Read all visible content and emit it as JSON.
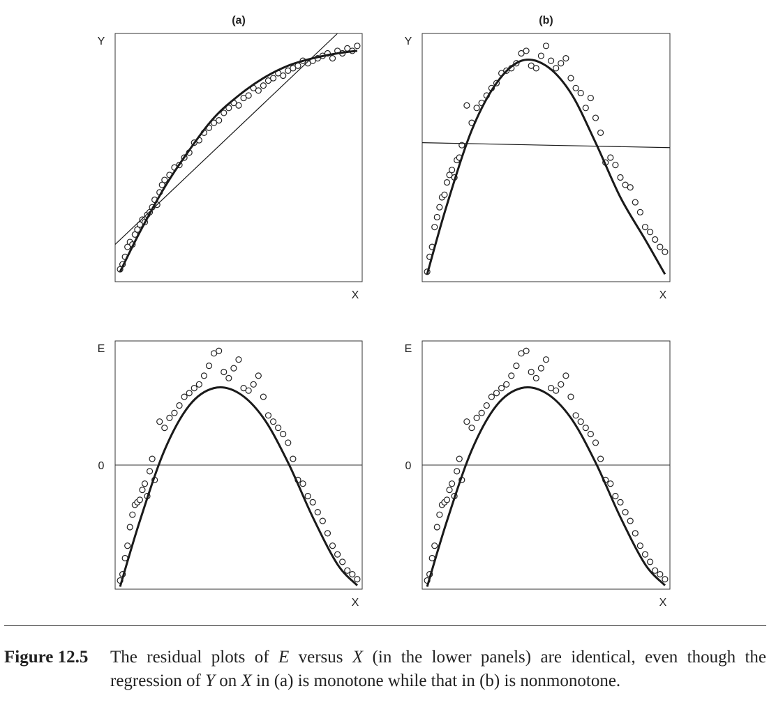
{
  "chart_data": [
    {
      "type": "scatter",
      "panel": "top-left",
      "title": "(a)",
      "ylabel": "Y",
      "xlabel": "X",
      "xlim": [
        0,
        1
      ],
      "ylim": [
        0,
        1
      ],
      "series": [
        {
          "kind": "points",
          "x": [
            0.02,
            0.03,
            0.04,
            0.05,
            0.06,
            0.07,
            0.08,
            0.09,
            0.1,
            0.11,
            0.12,
            0.13,
            0.14,
            0.15,
            0.16,
            0.17,
            0.18,
            0.19,
            0.2,
            0.22,
            0.24,
            0.26,
            0.28,
            0.3,
            0.32,
            0.34,
            0.36,
            0.38,
            0.4,
            0.42,
            0.44,
            0.46,
            0.48,
            0.5,
            0.52,
            0.54,
            0.56,
            0.58,
            0.6,
            0.62,
            0.64,
            0.66,
            0.68,
            0.7,
            0.72,
            0.74,
            0.76,
            0.78,
            0.8,
            0.82,
            0.84,
            0.86,
            0.88,
            0.9,
            0.92,
            0.94,
            0.96,
            0.98
          ],
          "y": [
            0.05,
            0.07,
            0.1,
            0.14,
            0.16,
            0.15,
            0.19,
            0.21,
            0.23,
            0.25,
            0.24,
            0.27,
            0.28,
            0.3,
            0.33,
            0.31,
            0.36,
            0.39,
            0.41,
            0.43,
            0.46,
            0.47,
            0.5,
            0.52,
            0.56,
            0.57,
            0.6,
            0.62,
            0.64,
            0.65,
            0.68,
            0.7,
            0.72,
            0.71,
            0.74,
            0.75,
            0.78,
            0.77,
            0.79,
            0.81,
            0.82,
            0.84,
            0.83,
            0.85,
            0.86,
            0.87,
            0.89,
            0.88,
            0.89,
            0.9,
            0.91,
            0.92,
            0.9,
            0.93,
            0.92,
            0.94,
            0.93,
            0.95
          ]
        },
        {
          "kind": "smooth-fit",
          "x": [
            0.02,
            0.1,
            0.2,
            0.3,
            0.4,
            0.5,
            0.6,
            0.7,
            0.8,
            0.9,
            0.98
          ],
          "y": [
            0.04,
            0.2,
            0.38,
            0.53,
            0.66,
            0.75,
            0.82,
            0.87,
            0.9,
            0.92,
            0.93
          ]
        },
        {
          "kind": "linear-fit",
          "x": [
            0.0,
            0.9
          ],
          "y": [
            0.15,
            1.0
          ]
        }
      ]
    },
    {
      "type": "scatter",
      "panel": "top-right",
      "title": "(b)",
      "ylabel": "Y",
      "xlabel": "X",
      "xlim": [
        0,
        1
      ],
      "ylim": [
        0,
        1
      ],
      "series": [
        {
          "kind": "points",
          "x": [
            0.02,
            0.03,
            0.04,
            0.05,
            0.06,
            0.07,
            0.08,
            0.09,
            0.1,
            0.11,
            0.12,
            0.13,
            0.14,
            0.15,
            0.16,
            0.18,
            0.2,
            0.22,
            0.24,
            0.26,
            0.28,
            0.3,
            0.32,
            0.34,
            0.36,
            0.38,
            0.4,
            0.42,
            0.44,
            0.46,
            0.48,
            0.5,
            0.52,
            0.54,
            0.56,
            0.58,
            0.6,
            0.62,
            0.64,
            0.66,
            0.68,
            0.7,
            0.72,
            0.74,
            0.76,
            0.78,
            0.8,
            0.82,
            0.84,
            0.86,
            0.88,
            0.9,
            0.92,
            0.94,
            0.96,
            0.98
          ],
          "y": [
            0.04,
            0.1,
            0.14,
            0.22,
            0.26,
            0.3,
            0.34,
            0.35,
            0.4,
            0.43,
            0.45,
            0.42,
            0.49,
            0.5,
            0.55,
            0.71,
            0.64,
            0.7,
            0.72,
            0.75,
            0.78,
            0.8,
            0.84,
            0.85,
            0.86,
            0.88,
            0.92,
            0.93,
            0.87,
            0.86,
            0.91,
            0.95,
            0.89,
            0.86,
            0.88,
            0.9,
            0.82,
            0.78,
            0.76,
            0.7,
            0.74,
            0.66,
            0.6,
            0.48,
            0.5,
            0.47,
            0.42,
            0.39,
            0.38,
            0.32,
            0.28,
            0.22,
            0.2,
            0.17,
            0.14,
            0.12
          ]
        },
        {
          "kind": "smooth-fit",
          "x": [
            0.02,
            0.1,
            0.2,
            0.3,
            0.4,
            0.5,
            0.6,
            0.7,
            0.8,
            0.9,
            0.98
          ],
          "y": [
            0.03,
            0.31,
            0.61,
            0.8,
            0.89,
            0.87,
            0.76,
            0.56,
            0.34,
            0.17,
            0.03
          ]
        },
        {
          "kind": "linear-fit",
          "x": [
            0.0,
            1.0
          ],
          "y": [
            0.56,
            0.54
          ]
        }
      ]
    },
    {
      "type": "scatter",
      "panel": "bottom-left",
      "ylabel": "E",
      "xlabel": "X",
      "yticks": [
        "0"
      ],
      "xlim": [
        0,
        1
      ],
      "ylim": [
        -1,
        1
      ],
      "series": [
        {
          "kind": "points",
          "x": [
            0.02,
            0.03,
            0.04,
            0.05,
            0.06,
            0.07,
            0.08,
            0.09,
            0.1,
            0.11,
            0.12,
            0.13,
            0.14,
            0.15,
            0.16,
            0.18,
            0.2,
            0.22,
            0.24,
            0.26,
            0.28,
            0.3,
            0.32,
            0.34,
            0.36,
            0.38,
            0.4,
            0.42,
            0.44,
            0.46,
            0.48,
            0.5,
            0.52,
            0.54,
            0.56,
            0.58,
            0.6,
            0.62,
            0.64,
            0.66,
            0.68,
            0.7,
            0.72,
            0.74,
            0.76,
            0.78,
            0.8,
            0.82,
            0.84,
            0.86,
            0.88,
            0.9,
            0.92,
            0.94,
            0.96,
            0.98
          ],
          "y": [
            -0.93,
            -0.88,
            -0.75,
            -0.65,
            -0.5,
            -0.4,
            -0.32,
            -0.3,
            -0.28,
            -0.2,
            -0.15,
            -0.25,
            -0.05,
            0.05,
            -0.12,
            0.35,
            0.3,
            0.38,
            0.42,
            0.48,
            0.55,
            0.58,
            0.62,
            0.65,
            0.72,
            0.8,
            0.9,
            0.92,
            0.75,
            0.7,
            0.78,
            0.85,
            0.62,
            0.6,
            0.65,
            0.72,
            0.55,
            0.4,
            0.35,
            0.3,
            0.25,
            0.18,
            0.05,
            -0.12,
            -0.15,
            -0.25,
            -0.3,
            -0.38,
            -0.45,
            -0.55,
            -0.65,
            -0.72,
            -0.78,
            -0.85,
            -0.88,
            -0.92
          ]
        },
        {
          "kind": "smooth-fit",
          "x": [
            0.02,
            0.1,
            0.2,
            0.3,
            0.4,
            0.5,
            0.6,
            0.7,
            0.8,
            0.9,
            0.98
          ],
          "y": [
            -0.98,
            -0.45,
            0.12,
            0.48,
            0.62,
            0.58,
            0.38,
            0.02,
            -0.42,
            -0.8,
            -0.97
          ]
        }
      ]
    },
    {
      "type": "scatter",
      "panel": "bottom-right",
      "ylabel": "E",
      "xlabel": "X",
      "yticks": [
        "0"
      ],
      "xlim": [
        0,
        1
      ],
      "ylim": [
        -1,
        1
      ],
      "series": [
        {
          "kind": "points",
          "x": [
            0.02,
            0.03,
            0.04,
            0.05,
            0.06,
            0.07,
            0.08,
            0.09,
            0.1,
            0.11,
            0.12,
            0.13,
            0.14,
            0.15,
            0.16,
            0.18,
            0.2,
            0.22,
            0.24,
            0.26,
            0.28,
            0.3,
            0.32,
            0.34,
            0.36,
            0.38,
            0.4,
            0.42,
            0.44,
            0.46,
            0.48,
            0.5,
            0.52,
            0.54,
            0.56,
            0.58,
            0.6,
            0.62,
            0.64,
            0.66,
            0.68,
            0.7,
            0.72,
            0.74,
            0.76,
            0.78,
            0.8,
            0.82,
            0.84,
            0.86,
            0.88,
            0.9,
            0.92,
            0.94,
            0.96,
            0.98
          ],
          "y": [
            -0.93,
            -0.88,
            -0.75,
            -0.65,
            -0.5,
            -0.4,
            -0.32,
            -0.3,
            -0.28,
            -0.2,
            -0.15,
            -0.25,
            -0.05,
            0.05,
            -0.12,
            0.35,
            0.3,
            0.38,
            0.42,
            0.48,
            0.55,
            0.58,
            0.62,
            0.65,
            0.72,
            0.8,
            0.9,
            0.92,
            0.75,
            0.7,
            0.78,
            0.85,
            0.62,
            0.6,
            0.65,
            0.72,
            0.55,
            0.4,
            0.35,
            0.3,
            0.25,
            0.18,
            0.05,
            -0.12,
            -0.15,
            -0.25,
            -0.3,
            -0.38,
            -0.45,
            -0.55,
            -0.65,
            -0.72,
            -0.78,
            -0.85,
            -0.88,
            -0.92
          ]
        },
        {
          "kind": "smooth-fit",
          "x": [
            0.02,
            0.1,
            0.2,
            0.3,
            0.4,
            0.5,
            0.6,
            0.7,
            0.8,
            0.9,
            0.98
          ],
          "y": [
            -0.98,
            -0.45,
            0.12,
            0.48,
            0.62,
            0.58,
            0.38,
            0.02,
            -0.42,
            -0.8,
            -0.97
          ]
        }
      ]
    }
  ],
  "caption": {
    "label": "Figure 12.5",
    "text_1": "The residual plots of ",
    "var_e": "E",
    "text_2": " versus ",
    "var_x1": "X",
    "text_3": " (in the lower panels) are identical, even though the regression of ",
    "var_y": "Y",
    "text_4": " on ",
    "var_x2": "X",
    "text_5": " in (a) is monotone while that in (b) is nonmonotone."
  }
}
